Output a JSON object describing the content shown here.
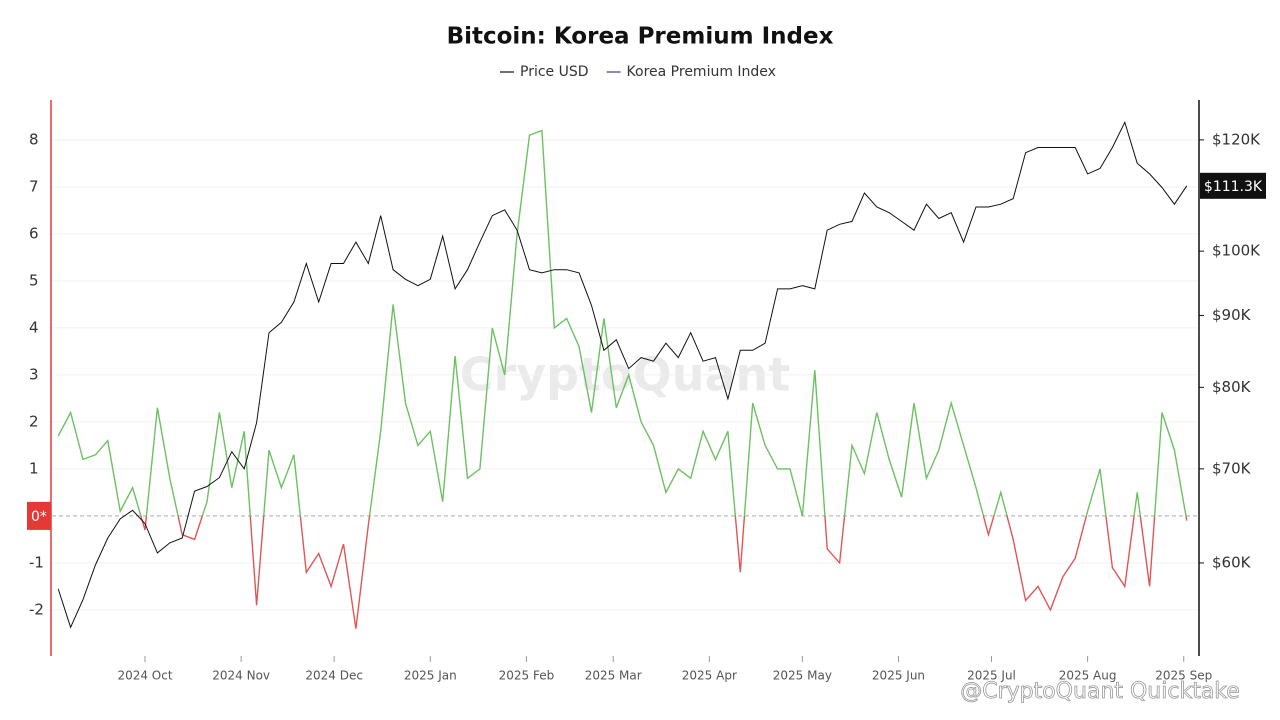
{
  "chart_data": {
    "type": "line",
    "title": "Bitcoin: Korea Premium Index",
    "watermark": "CryptoQuant",
    "credit": "@CryptoQuant Quicktake",
    "legend": "top",
    "grid": true,
    "y2log": true,
    "xlim": [
      -0.5,
      91.9
    ],
    "xticks": [
      {
        "value": 7,
        "label": "2024 Oct"
      },
      {
        "value": 14.75,
        "label": "2024 Nov"
      },
      {
        "value": 22.25,
        "label": "2024 Dec"
      },
      {
        "value": 30,
        "label": "2025 Jan"
      },
      {
        "value": 37.75,
        "label": "2025 Feb"
      },
      {
        "value": 44.75,
        "label": "2025 Mar"
      },
      {
        "value": 52.5,
        "label": "2025 Apr"
      },
      {
        "value": 60,
        "label": "2025 May"
      },
      {
        "value": 67.75,
        "label": "2025 Jun"
      },
      {
        "value": 75.25,
        "label": "2025 Jul"
      },
      {
        "value": 83,
        "label": "2025 Aug"
      },
      {
        "value": 90.75,
        "label": "2025 Sep"
      }
    ],
    "ylim": [
      -2.96,
      8.85
    ],
    "yticks": [
      -2,
      -1,
      {
        "value": 0,
        "label": "0*"
      },
      1,
      2,
      3,
      4,
      5,
      6,
      7,
      8
    ],
    "y2lim": [
      51600,
      128100
    ],
    "y2ticks": [
      {
        "value": 60000,
        "label": "$60K"
      },
      {
        "value": 70000,
        "label": "$70K"
      },
      {
        "value": 80000,
        "label": "$80K"
      },
      {
        "value": 90000,
        "label": "$90K"
      },
      {
        "value": 100000,
        "label": "$100K"
      },
      {
        "value": 120000,
        "label": "$120K"
      }
    ],
    "series": [
      {
        "name": "Price USD",
        "color": "#111111",
        "axis": "y2",
        "last_label": "$111.3K",
        "values": [
          57500,
          54000,
          56500,
          59800,
          62500,
          64500,
          65400,
          64000,
          61000,
          62000,
          62500,
          67500,
          68000,
          69000,
          72000,
          70000,
          75500,
          87500,
          89000,
          92000,
          98000,
          92000,
          98000,
          98000,
          101500,
          98000,
          106000,
          97000,
          95500,
          94500,
          95500,
          102500,
          94000,
          97000,
          101500,
          106000,
          107000,
          103500,
          97000,
          96500,
          97000,
          97000,
          96500,
          91500,
          85000,
          86500,
          82500,
          84000,
          83500,
          86000,
          84000,
          87500,
          83500,
          84000,
          78500,
          85000,
          85000,
          86000,
          94000,
          94000,
          94500,
          94000,
          103500,
          104500,
          105000,
          110000,
          107500,
          106500,
          105000,
          103500,
          108000,
          105500,
          106500,
          101500,
          107500,
          107500,
          108000,
          109000,
          117500,
          118500,
          118500,
          118500,
          118500,
          113500,
          114500,
          118500,
          123500,
          115500,
          113500,
          111000,
          108000,
          111300
        ]
      },
      {
        "name": "Korea Premium Index",
        "color": "#6cc160",
        "negative_color": "#e05656",
        "legend_color": "#3b3897",
        "values": [
          1.7,
          2.2,
          1.2,
          1.3,
          1.6,
          0.1,
          0.6,
          -0.3,
          2.3,
          0.8,
          -0.4,
          -0.5,
          0.3,
          2.2,
          0.6,
          1.8,
          -1.9,
          1.4,
          0.6,
          1.3,
          -1.2,
          -0.8,
          -1.5,
          -0.6,
          -2.4,
          -0.2,
          1.8,
          4.5,
          2.4,
          1.5,
          1.8,
          0.3,
          3.4,
          0.8,
          1.0,
          4.0,
          3.0,
          6.0,
          8.1,
          8.2,
          4.0,
          4.2,
          3.6,
          2.2,
          4.2,
          2.3,
          3.0,
          2.0,
          1.5,
          0.5,
          1.0,
          0.8,
          1.8,
          1.2,
          1.8,
          -1.2,
          2.4,
          1.5,
          1.0,
          1.0,
          0.0,
          3.1,
          -0.7,
          -1.0,
          1.5,
          0.9,
          2.2,
          1.2,
          0.4,
          2.4,
          0.8,
          1.4,
          2.4,
          1.5,
          0.6,
          -0.4,
          0.5,
          -0.5,
          -1.8,
          -1.5,
          -2.0,
          -1.3,
          -0.9,
          0.1,
          1.0,
          -1.1,
          -1.5,
          0.5,
          -1.5,
          2.2,
          1.4,
          -0.1
        ]
      }
    ]
  }
}
